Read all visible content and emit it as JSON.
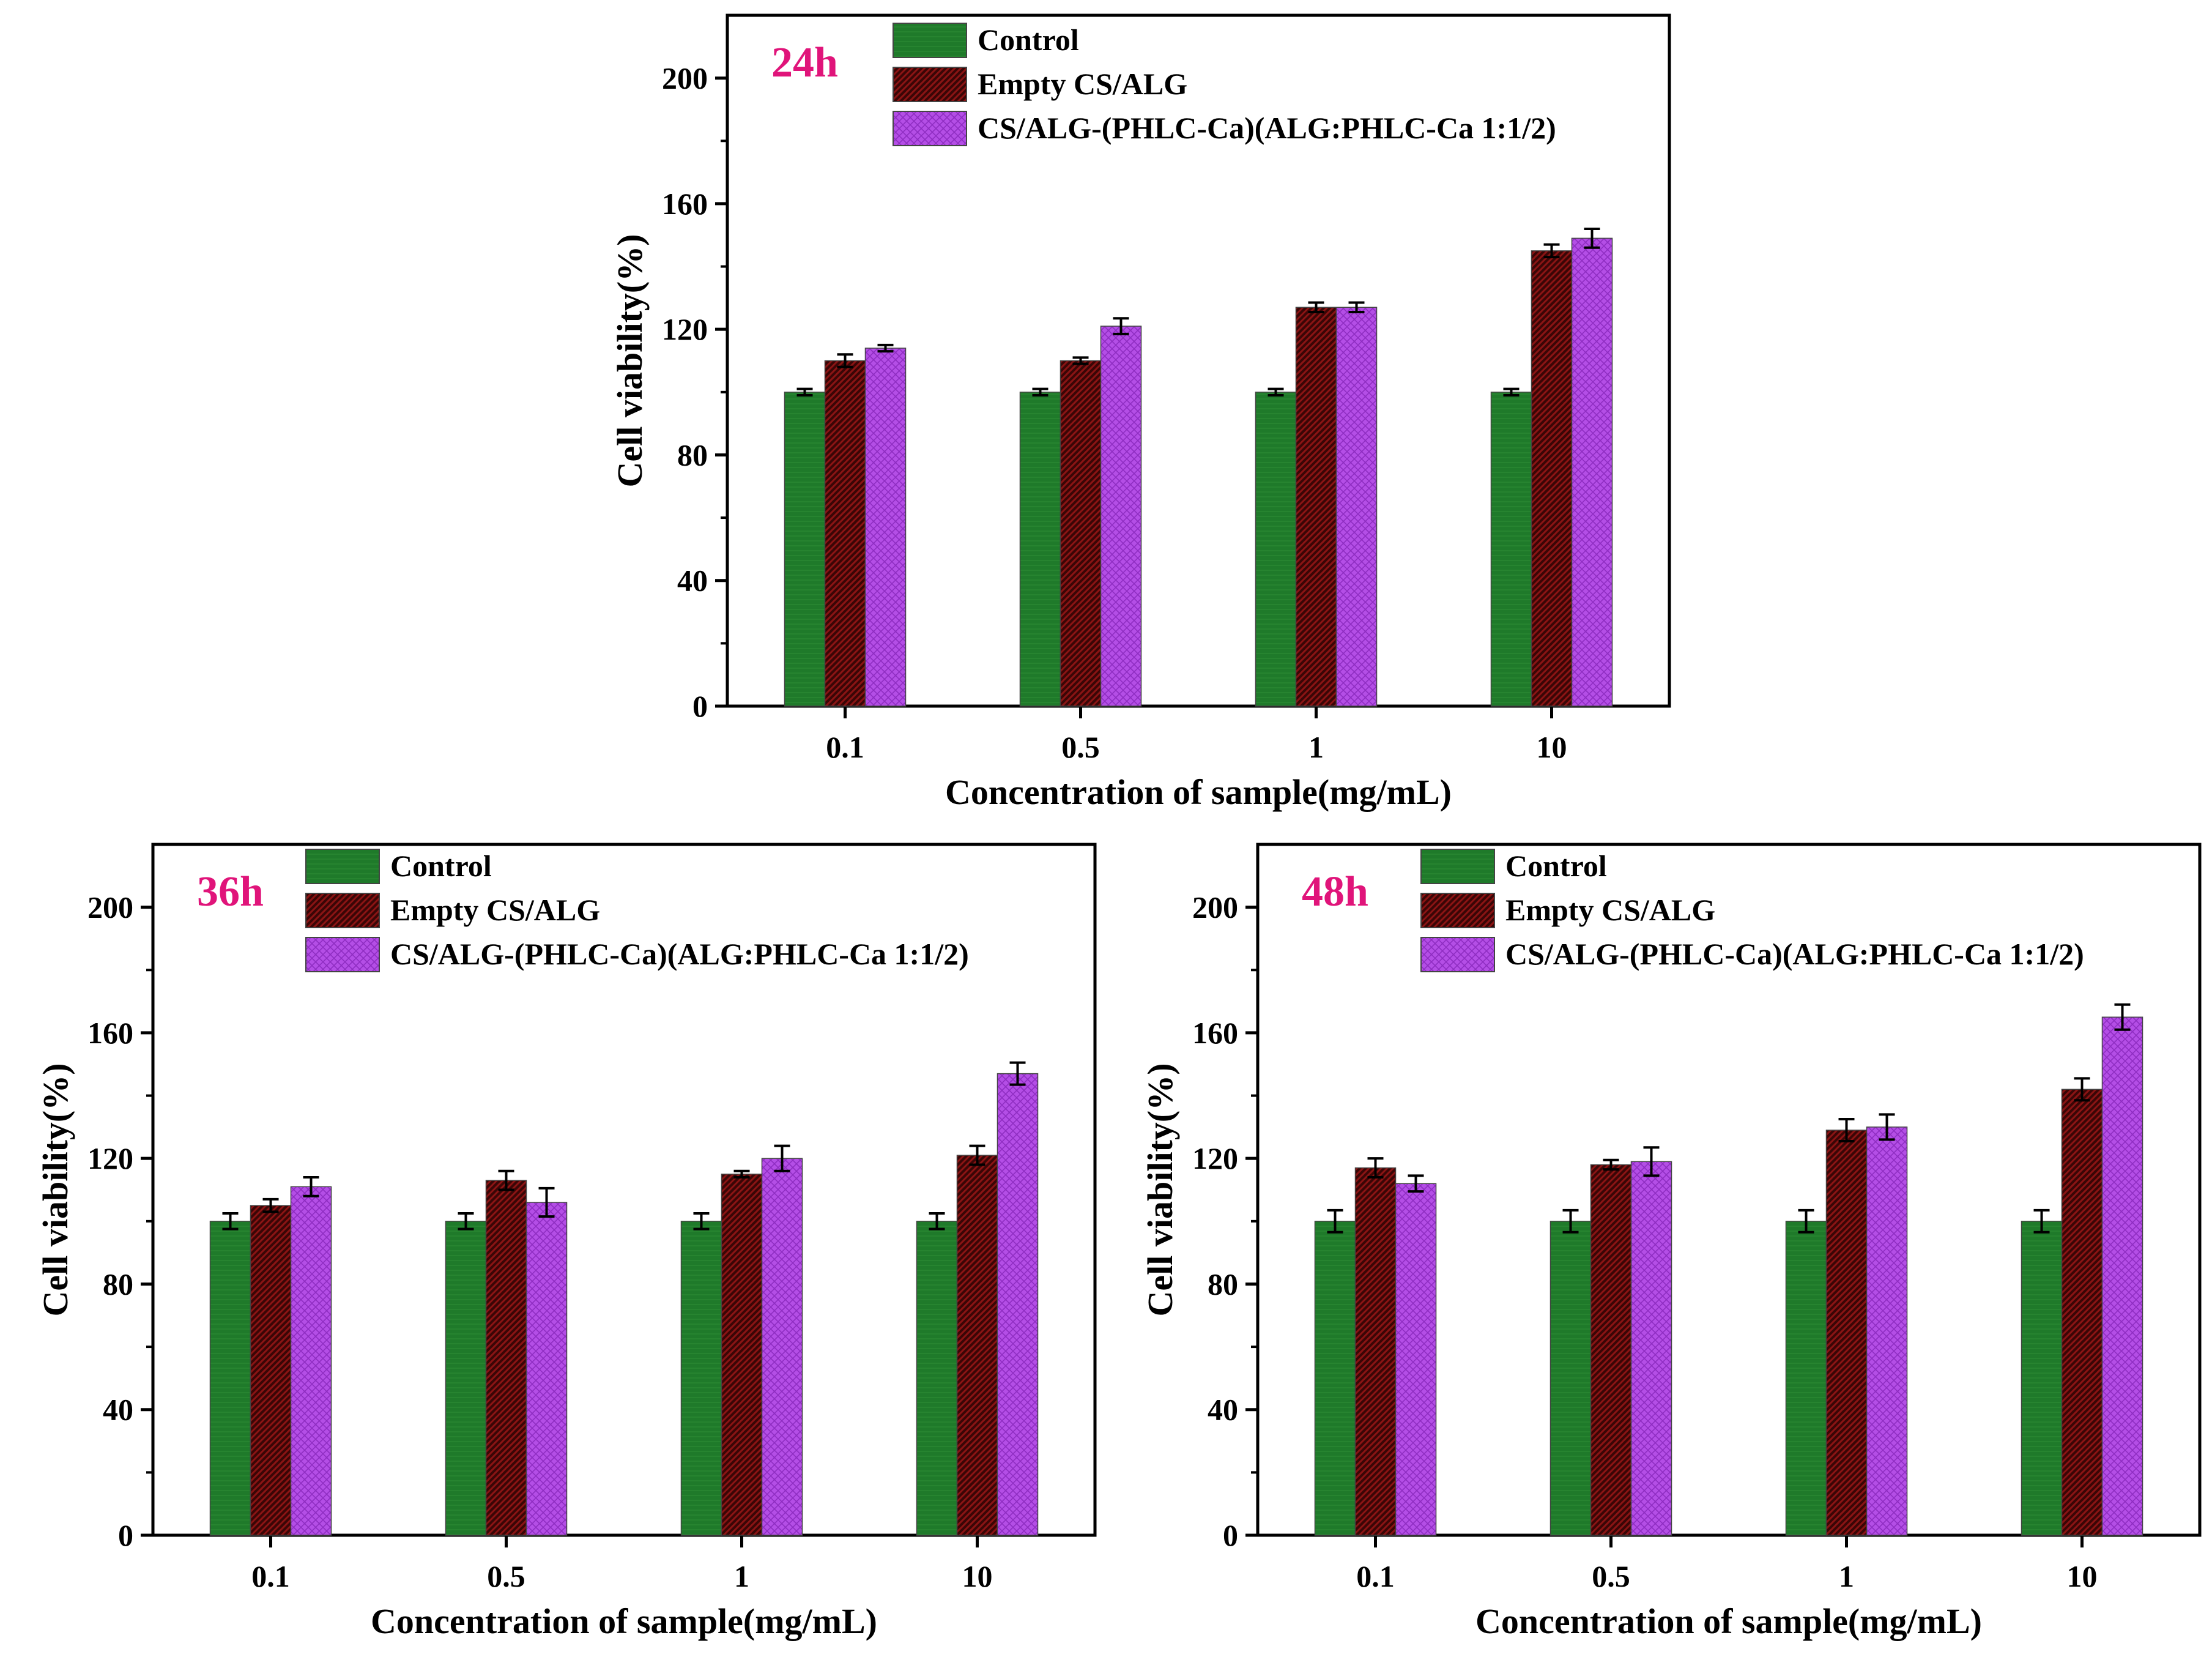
{
  "legend": {
    "control": "Control",
    "empty": "Empty CS/ALG",
    "loaded": "CS/ALG-(PHLC-Ca)(ALG:PHLC-Ca 1:1/2)"
  },
  "colors": {
    "control": "#1f7a2a",
    "empty": "#8b1414",
    "loaded": "#b44ee6",
    "time_label": "#e0147a"
  },
  "chart_data": [
    {
      "type": "bar",
      "panel_label": "24h",
      "xlabel": "Concentration of sample(mg/mL)",
      "ylabel": "Cell viability(%)",
      "categories": [
        "0.1",
        "0.5",
        "1",
        "10"
      ],
      "ylim": [
        0,
        220
      ],
      "yticks": [
        0,
        40,
        80,
        120,
        160,
        200
      ],
      "series": [
        {
          "name": "Control",
          "values": [
            100,
            100,
            100,
            100
          ],
          "errors": [
            1,
            1,
            1,
            1
          ]
        },
        {
          "name": "Empty CS/ALG",
          "values": [
            110,
            110,
            127,
            145
          ],
          "errors": [
            2,
            1,
            1.5,
            2
          ]
        },
        {
          "name": "CS/ALG-(PHLC-Ca)(ALG:PHLC-Ca 1:1/2)",
          "values": [
            114,
            121,
            127,
            149
          ],
          "errors": [
            1,
            2.5,
            1.5,
            3
          ]
        }
      ]
    },
    {
      "type": "bar",
      "panel_label": "36h",
      "xlabel": "Concentration of sample(mg/mL)",
      "ylabel": "Cell viability(%)",
      "categories": [
        "0.1",
        "0.5",
        "1",
        "10"
      ],
      "ylim": [
        0,
        220
      ],
      "yticks": [
        0,
        40,
        80,
        120,
        160,
        200
      ],
      "series": [
        {
          "name": "Control",
          "values": [
            100,
            100,
            100,
            100
          ],
          "errors": [
            2.5,
            2.5,
            2.5,
            2.5
          ]
        },
        {
          "name": "Empty CS/ALG",
          "values": [
            105,
            113,
            115,
            121
          ],
          "errors": [
            2,
            3,
            1,
            3
          ]
        },
        {
          "name": "CS/ALG-(PHLC-Ca)(ALG:PHLC-Ca 1:1/2)",
          "values": [
            111,
            106,
            120,
            147
          ],
          "errors": [
            3,
            4.5,
            4,
            3.5
          ]
        }
      ]
    },
    {
      "type": "bar",
      "panel_label": "48h",
      "xlabel": "Concentration of sample(mg/mL)",
      "ylabel": "Cell viability(%)",
      "categories": [
        "0.1",
        "0.5",
        "1",
        "10"
      ],
      "ylim": [
        0,
        220
      ],
      "yticks": [
        0,
        40,
        80,
        120,
        160,
        200
      ],
      "series": [
        {
          "name": "Control",
          "values": [
            100,
            100,
            100,
            100
          ],
          "errors": [
            3.5,
            3.5,
            3.5,
            3.5
          ]
        },
        {
          "name": "Empty CS/ALG",
          "values": [
            117,
            118,
            129,
            142
          ],
          "errors": [
            3,
            1.5,
            3.5,
            3.5
          ]
        },
        {
          "name": "CS/ALG-(PHLC-Ca)(ALG:PHLC-Ca 1:1/2)",
          "values": [
            112,
            119,
            130,
            165
          ],
          "errors": [
            2.5,
            4.5,
            4,
            4
          ]
        }
      ]
    }
  ]
}
